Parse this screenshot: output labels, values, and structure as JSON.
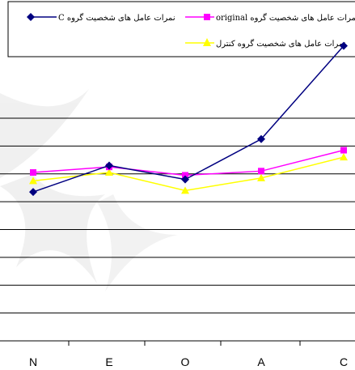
{
  "chart_data": {
    "type": "line",
    "categories": [
      "N",
      "E",
      "O",
      "A",
      "C"
    ],
    "ylim": [
      0,
      9
    ],
    "grid": true,
    "legend_placement": "top",
    "series": [
      {
        "name": "نمرات عامل های شخصیت گروه C",
        "color": "#000080",
        "marker": "diamond",
        "values": [
          5.35,
          6.3,
          5.8,
          7.25,
          10.6
        ]
      },
      {
        "name": "نمرات عامل های شخصیت گروه original",
        "color": "#FF00FF",
        "marker": "square",
        "values": [
          6.05,
          6.25,
          5.95,
          6.1,
          6.85
        ]
      },
      {
        "name": "نمرات عامل های شخصیت گروه کنترل",
        "color": "#FFFF00",
        "marker": "triangle",
        "values": [
          5.75,
          6.05,
          5.4,
          5.85,
          6.6
        ]
      }
    ]
  }
}
